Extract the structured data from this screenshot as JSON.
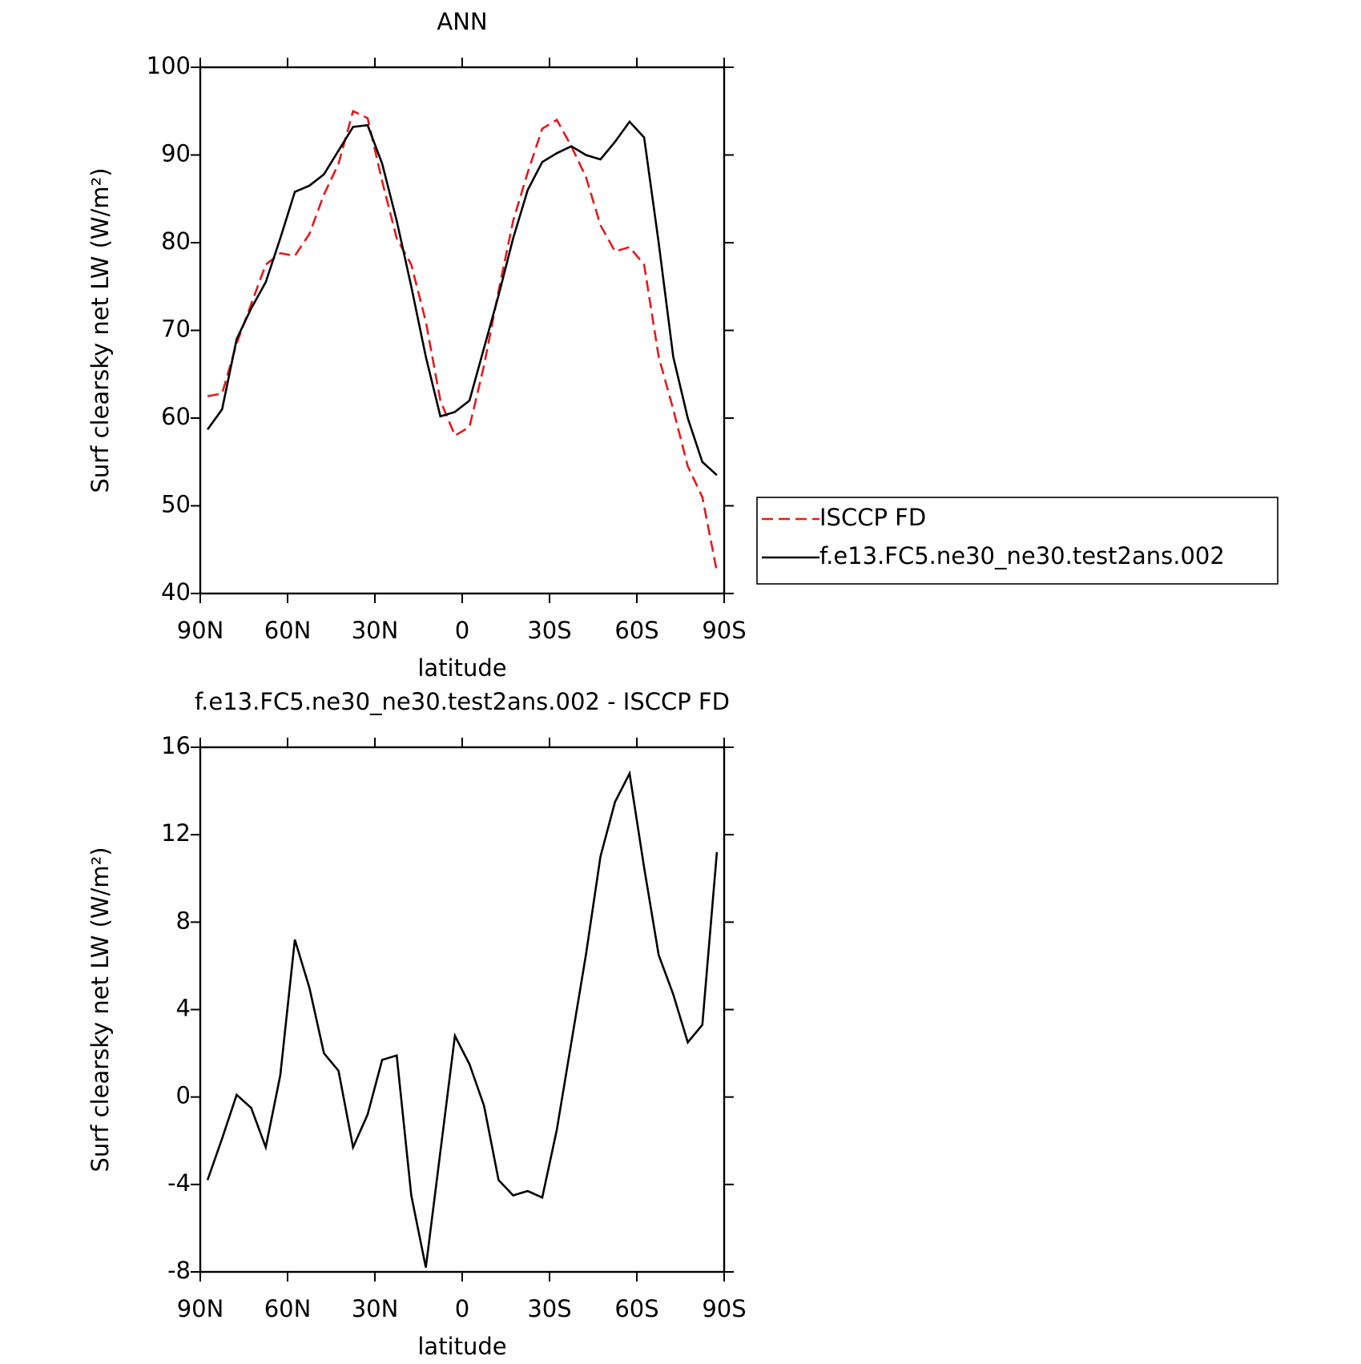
{
  "chart_data": [
    {
      "type": "line",
      "title": "ANN",
      "xlabel": "latitude",
      "ylabel": "Surf clearsky net LW (W/m²)",
      "x": [
        87.5,
        82.5,
        77.5,
        72.5,
        67.5,
        62.5,
        57.5,
        52.5,
        47.5,
        42.5,
        37.5,
        32.5,
        27.5,
        22.5,
        17.5,
        12.5,
        7.5,
        2.5,
        -2.5,
        -7.5,
        -12.5,
        -17.5,
        -22.5,
        -27.5,
        -32.5,
        -37.5,
        -42.5,
        -47.5,
        -52.5,
        -57.5,
        -62.5,
        -67.5,
        -72.5,
        -77.5,
        -82.5,
        -87.5
      ],
      "series": [
        {
          "name": "ISCCP FD",
          "color": "#e41a1c",
          "dash": true,
          "values": [
            62.5,
            62.8,
            68.5,
            73,
            77.5,
            78.8,
            78.5,
            81,
            85.5,
            89,
            95,
            94.2,
            87,
            80.5,
            77.5,
            71,
            62,
            58,
            59,
            66,
            74.5,
            82.5,
            88,
            93,
            94,
            91,
            87.5,
            82,
            79,
            79.5,
            77.5,
            67,
            61,
            54.5,
            51,
            42.5
          ]
        },
        {
          "name": "f.e13.FC5.ne30_ne30.test2ans.002",
          "color": "#000000",
          "dash": false,
          "values": [
            58.7,
            61,
            69,
            72.5,
            75.5,
            80.5,
            85.8,
            86.5,
            87.8,
            90.5,
            93.2,
            93.4,
            89,
            82.5,
            75,
            67,
            60.2,
            60.7,
            62,
            68,
            74,
            80.5,
            86,
            89.2,
            90.2,
            91,
            90,
            89.5,
            91.5,
            93.8,
            92,
            80,
            67,
            60,
            55,
            53.5
          ]
        }
      ],
      "xlim": [
        90,
        -90
      ],
      "xticks": [
        {
          "value": 90,
          "label": "90N"
        },
        {
          "value": 60,
          "label": "60N"
        },
        {
          "value": 30,
          "label": "30N"
        },
        0,
        {
          "value": -30,
          "label": "30S"
        },
        {
          "value": -60,
          "label": "60S"
        },
        {
          "value": -90,
          "label": "90S"
        }
      ],
      "ylim": [
        40,
        100
      ],
      "yticks": [
        40,
        50,
        60,
        70,
        80,
        90,
        100
      ],
      "legend": "outside-right"
    },
    {
      "type": "line",
      "title": "f.e13.FC5.ne30_ne30.test2ans.002 - ISCCP FD",
      "xlabel": "latitude",
      "ylabel": "Surf clearsky net LW (W/m²)",
      "x": [
        87.5,
        82.5,
        77.5,
        72.5,
        67.5,
        62.5,
        57.5,
        52.5,
        47.5,
        42.5,
        37.5,
        32.5,
        27.5,
        22.5,
        17.5,
        12.5,
        7.5,
        2.5,
        -2.5,
        -7.5,
        -12.5,
        -17.5,
        -22.5,
        -27.5,
        -32.5,
        -37.5,
        -42.5,
        -47.5,
        -52.5,
        -57.5,
        -62.5,
        -67.5,
        -72.5,
        -77.5,
        -82.5,
        -87.5
      ],
      "series": [
        {
          "name": null,
          "color": "#000000",
          "dash": false,
          "values": [
            -3.8,
            -1.9,
            0.1,
            -0.5,
            -2.3,
            1,
            7.2,
            5,
            2,
            1.2,
            -2.3,
            -0.8,
            1.7,
            1.9,
            -4.5,
            -7.8,
            -2.5,
            2.8,
            1.5,
            -0.4,
            -3.8,
            -4.5,
            -4.3,
            -4.6,
            -1.5,
            2.5,
            6.5,
            11,
            13.5,
            14.8,
            10.5,
            6.5,
            4.7,
            2.5,
            3.3,
            11.2
          ]
        }
      ],
      "xlim": [
        90,
        -90
      ],
      "xticks": [
        {
          "value": 90,
          "label": "90N"
        },
        {
          "value": 60,
          "label": "60N"
        },
        {
          "value": 30,
          "label": "30N"
        },
        0,
        {
          "value": -30,
          "label": "30S"
        },
        {
          "value": -60,
          "label": "60S"
        },
        {
          "value": -90,
          "label": "90S"
        }
      ],
      "ylim": [
        -8,
        16
      ],
      "yticks": [
        -8,
        -4,
        0,
        4,
        8,
        12,
        16
      ]
    }
  ]
}
